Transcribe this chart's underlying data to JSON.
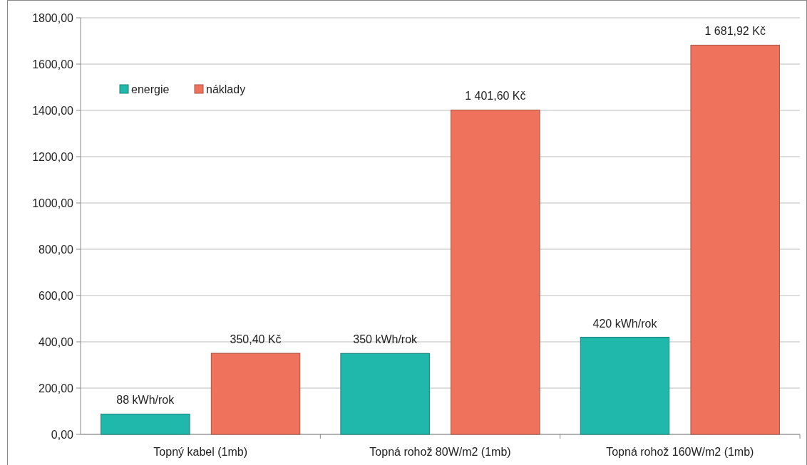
{
  "chart_data": {
    "type": "bar",
    "categories": [
      "Topný kabel (1mb)",
      "Topná rohož 80W/m2 (1mb)",
      "Topná rohož 160W/m2 (1mb)"
    ],
    "series": [
      {
        "name": "energie",
        "color": "#1fb8aa",
        "values": [
          88,
          350,
          420
        ],
        "value_labels": [
          "88 kWh/rok",
          "350 kWh/rok",
          "420 kWh/rok"
        ]
      },
      {
        "name": "náklady",
        "color": "#ef735c",
        "values": [
          350.4,
          1401.6,
          1681.92
        ],
        "value_labels": [
          "350,40 Kč",
          "1 401,60 Kč",
          "1 681,92 Kč"
        ]
      }
    ],
    "ylim": [
      0,
      1800
    ],
    "yticks": [
      {
        "value": 0,
        "label": "0,00"
      },
      {
        "value": 200,
        "label": "200,00"
      },
      {
        "value": 400,
        "label": "400,00"
      },
      {
        "value": 600,
        "label": "600,00"
      },
      {
        "value": 800,
        "label": "800,00"
      },
      {
        "value": 1000,
        "label": "1000,00"
      },
      {
        "value": 1200,
        "label": "1200,00"
      },
      {
        "value": 1400,
        "label": "1400,00"
      },
      {
        "value": 1600,
        "label": "1600,00"
      },
      {
        "value": 1800,
        "label": "1800,00"
      }
    ],
    "grid": "y",
    "legend": "top left"
  }
}
